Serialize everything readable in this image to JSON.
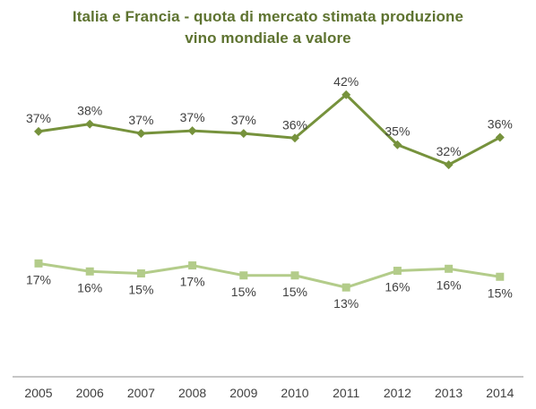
{
  "chart_data": {
    "type": "line",
    "title_lines": [
      "Italia e Francia  - quota di mercato stimata produzione",
      "vino mondiale a valore"
    ],
    "categories": [
      "2005",
      "2006",
      "2007",
      "2008",
      "2009",
      "2010",
      "2011",
      "2012",
      "2013",
      "2014"
    ],
    "ylim": [
      0,
      46
    ],
    "grid": false,
    "legend": "none",
    "series": [
      {
        "values": [
          36.8,
          37.9,
          36.5,
          36.9,
          36.5,
          35.8,
          42.3,
          34.8,
          31.8,
          35.9
        ],
        "labels": [
          "37%",
          "38%",
          "37%",
          "37%",
          "37%",
          "36%",
          "42%",
          "35%",
          "32%",
          "36%"
        ],
        "color": "#76923c",
        "marker": "diamond",
        "label_position": "above"
      },
      {
        "values": [
          17.0,
          15.8,
          15.5,
          16.7,
          15.2,
          15.2,
          13.4,
          15.9,
          16.2,
          15.0
        ],
        "labels": [
          "17%",
          "16%",
          "15%",
          "17%",
          "15%",
          "15%",
          "13%",
          "16%",
          "16%",
          "15%"
        ],
        "color": "#b3cc8a",
        "marker": "square",
        "label_position": "below"
      }
    ]
  }
}
